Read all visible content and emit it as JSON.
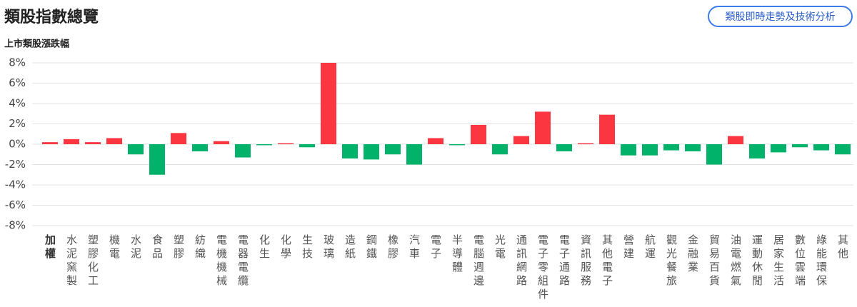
{
  "header": {
    "title": "類股指數總覽",
    "button": "類股即時走勢及技術分析"
  },
  "chart_data": {
    "type": "bar",
    "title": "上市類股漲跌幅",
    "categories": [
      "加權",
      "水泥窯製",
      "塑膠化工",
      "機電",
      "水泥",
      "食品",
      "塑膠",
      "紡織",
      "電機機械",
      "電器電纜",
      "化生",
      "化學",
      "生技",
      "玻璃",
      "造紙",
      "鋼鐵",
      "橡膠",
      "汽車",
      "電子",
      "半導體",
      "電腦週邊",
      "光電",
      "通訊網路",
      "電子零組件",
      "電子通路",
      "資訊服務",
      "其他電子",
      "營建",
      "航運",
      "觀光餐旅",
      "金融業",
      "貿易百貨",
      "油電燃氣",
      "運動休閒",
      "居家生活",
      "數位雲端",
      "綠能環保",
      "其他"
    ],
    "values": [
      0.2,
      0.5,
      0.2,
      0.6,
      -1.0,
      -3.0,
      1.1,
      -0.7,
      0.3,
      -1.3,
      -0.1,
      0.1,
      -0.3,
      8.0,
      -1.4,
      -1.5,
      -1.0,
      -2.0,
      0.6,
      -0.1,
      1.9,
      -1.0,
      0.8,
      3.2,
      -0.7,
      0.1,
      2.9,
      -1.1,
      -1.1,
      -0.6,
      -0.7,
      -2.0,
      0.8,
      -1.4,
      -0.8,
      -0.3,
      -0.6,
      -1.0
    ],
    "up_color": "#fb3640",
    "down_color": "#00b26a",
    "ylim": [
      -8,
      8
    ],
    "yticks": [
      {
        "value": -8,
        "label": "-8%"
      },
      {
        "value": -6,
        "label": "-6%"
      },
      {
        "value": -4,
        "label": "-4%"
      },
      {
        "value": -2,
        "label": "-2%"
      },
      {
        "value": 0,
        "label": "0%"
      },
      {
        "value": 2,
        "label": "2%"
      },
      {
        "value": 4,
        "label": "4%"
      },
      {
        "value": 6,
        "label": "6%"
      },
      {
        "value": 8,
        "label": "8%"
      }
    ],
    "grid": true
  }
}
